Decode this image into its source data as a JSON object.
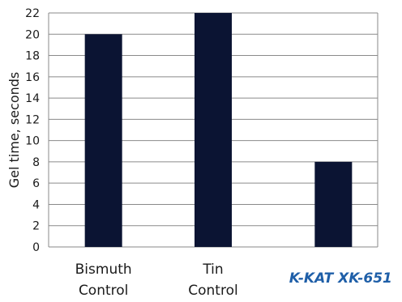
{
  "chart_data": {
    "type": "bar",
    "categories": [
      [
        "Bismuth",
        "Control"
      ],
      [
        "Tin",
        "Control"
      ],
      [
        "K-KAT XK-651"
      ]
    ],
    "values": [
      20,
      22,
      8
    ],
    "ylabel": "Gel time, seconds",
    "xlabel": "",
    "ylim": [
      0,
      22
    ],
    "yticks": [
      0,
      2,
      4,
      6,
      8,
      10,
      12,
      14,
      16,
      18,
      20,
      22
    ],
    "grid": true,
    "legend": "none",
    "colors": {
      "bar": "#0b1433",
      "grid": "#8a8a8a",
      "axis_text": "#1a1a1a",
      "highlight_label": "#1f5fa8"
    },
    "highlight_category_index": 2
  }
}
